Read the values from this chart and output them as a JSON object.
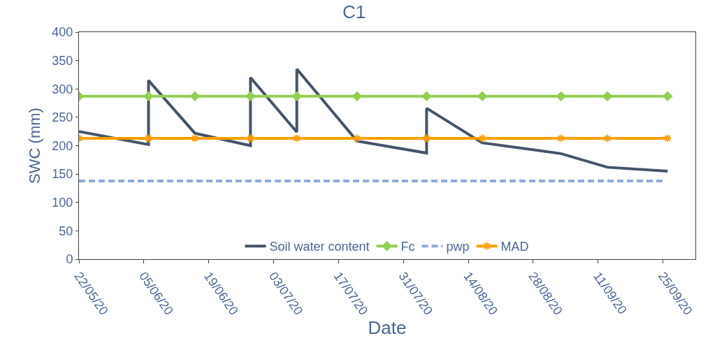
{
  "chart_data": {
    "type": "line",
    "title": "C1",
    "xlabel": "Date",
    "ylabel": "SWC (mm)",
    "xlim": [
      "--05-22",
      "--10-02"
    ],
    "xticks": [
      {
        "value": "--05-22",
        "label": "22/05/20"
      },
      {
        "value": "--06-05",
        "label": "05/06/20"
      },
      {
        "value": "--06-19",
        "label": "19/06/20"
      },
      {
        "value": "--07-03",
        "label": "03/07/20"
      },
      {
        "value": "--07-17",
        "label": "17/07/20"
      },
      {
        "value": "--07-31",
        "label": "31/07/20"
      },
      {
        "value": "--08-14",
        "label": "14/08/20"
      },
      {
        "value": "--08-28",
        "label": "28/08/20"
      },
      {
        "value": "--09-11",
        "label": "11/09/20"
      },
      {
        "value": "--09-25",
        "label": "25/09/20"
      }
    ],
    "ylim": [
      0,
      400
    ],
    "yticks": [
      0,
      50,
      100,
      150,
      200,
      250,
      300,
      350,
      400
    ],
    "grid": false,
    "legend": "bottom",
    "series": [
      {
        "name": "Soil water content",
        "color": "#44546a",
        "marker": "none",
        "line_style": "solid",
        "x": [
          "--05-22",
          "--06-06",
          "--06-06",
          "--06-16",
          "--06-28",
          "--06-28",
          "--07-08",
          "--07-08",
          "--07-21",
          "--08-05",
          "--08-05",
          "--08-17",
          "--09-03",
          "--09-13",
          "--09-26"
        ],
        "values": [
          225,
          202,
          315,
          222,
          200,
          320,
          224,
          335,
          208,
          187,
          266,
          205,
          186,
          162,
          155
        ]
      },
      {
        "name": "Fc",
        "color": "#92d050",
        "marker": "diamond",
        "line_style": "solid",
        "x": [
          "--05-22",
          "--06-06",
          "--06-16",
          "--06-28",
          "--07-08",
          "--07-21",
          "--08-05",
          "--08-17",
          "--09-03",
          "--09-13",
          "--09-26"
        ],
        "values": [
          287,
          287,
          287,
          287,
          287,
          287,
          287,
          287,
          287,
          287,
          287
        ]
      },
      {
        "name": "pwp",
        "color": "#8faadc",
        "marker": "none",
        "line_style": "dashed",
        "x": [
          "--05-22",
          "--09-25"
        ],
        "values": [
          138,
          138
        ]
      },
      {
        "name": "MAD",
        "color": "#ffa000",
        "marker": "cross",
        "line_style": "solid",
        "x": [
          "--05-22",
          "--06-06",
          "--06-16",
          "--06-28",
          "--07-08",
          "--07-21",
          "--08-05",
          "--08-17",
          "--09-03",
          "--09-13",
          "--09-26"
        ],
        "values": [
          213,
          213,
          213,
          213,
          213,
          213,
          213,
          213,
          213,
          213,
          213
        ]
      }
    ]
  }
}
